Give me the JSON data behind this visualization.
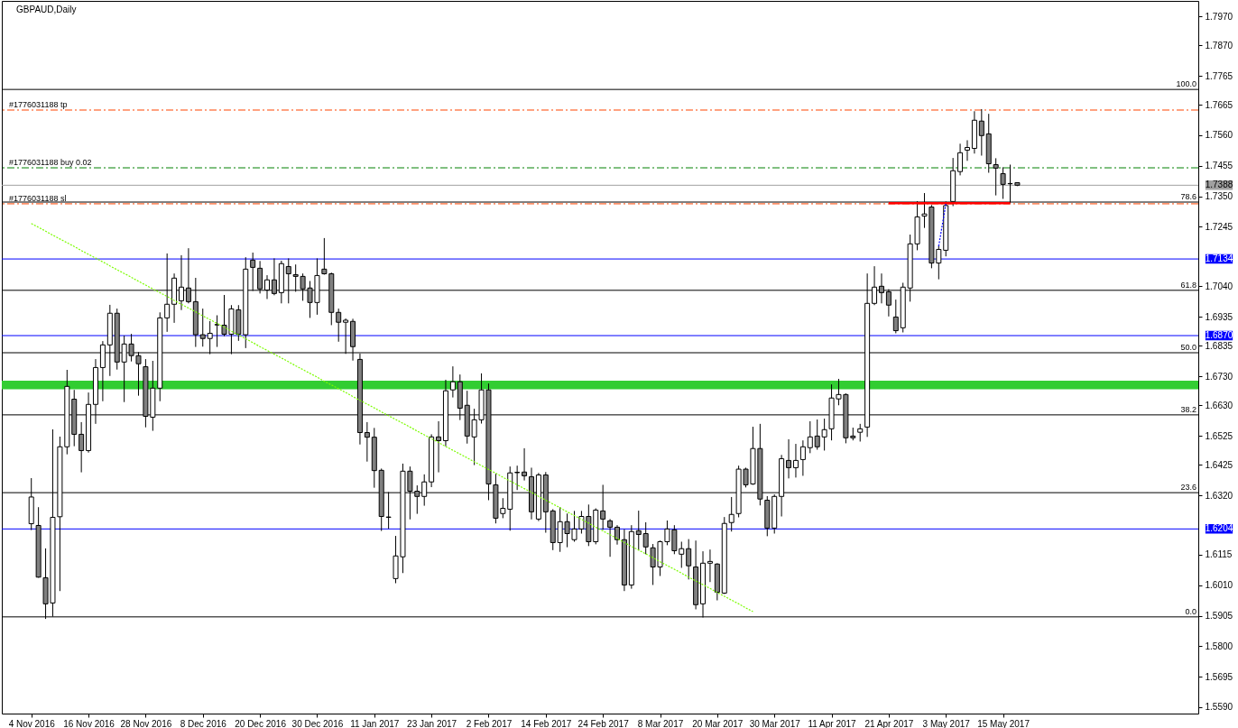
{
  "chart_data": {
    "type": "candlestick",
    "title": "GBPAUD,Daily",
    "categories": [
      "4 Nov 2016",
      null,
      null,
      null,
      null,
      null,
      null,
      null,
      "16 Nov 2016",
      null,
      null,
      null,
      null,
      null,
      null,
      null,
      "28 Nov 2016",
      null,
      null,
      null,
      null,
      null,
      null,
      null,
      "8 Dec 2016",
      null,
      null,
      null,
      null,
      null,
      null,
      null,
      "20 Dec 2016",
      null,
      null,
      null,
      null,
      null,
      null,
      null,
      "30 Dec 2016",
      null,
      null,
      null,
      null,
      null,
      null,
      null,
      "11 Jan 2017",
      null,
      null,
      null,
      null,
      null,
      null,
      null,
      "23 Jan 2017",
      null,
      null,
      null,
      null,
      null,
      null,
      null,
      "2 Feb 2017",
      null,
      null,
      null,
      null,
      null,
      null,
      null,
      "14 Feb 2017",
      null,
      null,
      null,
      null,
      null,
      null,
      null,
      "24 Feb 2017",
      null,
      null,
      null,
      null,
      null,
      null,
      null,
      "8 Mar 2017",
      null,
      null,
      null,
      null,
      null,
      null,
      null,
      "20 Mar 2017",
      null,
      null,
      null,
      null,
      null,
      null,
      null,
      "30 Mar 2017",
      null,
      null,
      null,
      null,
      null,
      null,
      null,
      "11 Apr 2017",
      null,
      null,
      null,
      null,
      null,
      null,
      null,
      "21 Apr 2017",
      null,
      null,
      null,
      null,
      null,
      null,
      null,
      "3 May 2017",
      null,
      null,
      null,
      null,
      null,
      null,
      null,
      "15 May 2017",
      null,
      null
    ],
    "ohlc": [
      [
        1.6222,
        1.6379,
        1.62,
        1.6314
      ],
      [
        1.6216,
        1.6279,
        1.6036,
        1.6038
      ],
      [
        1.6036,
        1.6137,
        1.5894,
        1.5946
      ],
      [
        1.5949,
        1.6547,
        1.5902,
        1.6244
      ],
      [
        1.6246,
        1.6522,
        1.599,
        1.6487
      ],
      [
        1.6487,
        1.6752,
        1.6461,
        1.6695
      ],
      [
        1.6651,
        1.6683,
        1.6489,
        1.653
      ],
      [
        1.653,
        1.6572,
        1.6399,
        1.6474
      ],
      [
        1.6474,
        1.6674,
        1.6467,
        1.6633
      ],
      [
        1.6633,
        1.6789,
        1.6566,
        1.676
      ],
      [
        1.676,
        1.6851,
        1.6644,
        1.6838
      ],
      [
        1.6838,
        1.6976,
        1.6731,
        1.6947
      ],
      [
        1.6947,
        1.6963,
        1.6753,
        1.6779
      ],
      [
        1.6779,
        1.687,
        1.6641,
        1.6841
      ],
      [
        1.6841,
        1.6876,
        1.6781,
        1.6801
      ],
      [
        1.6801,
        1.6813,
        1.6663,
        1.6773
      ],
      [
        1.6763,
        1.6789,
        1.6554,
        1.6592
      ],
      [
        1.6589,
        1.6783,
        1.6542,
        1.6689
      ],
      [
        1.6689,
        1.695,
        1.6644,
        1.6931
      ],
      [
        1.6931,
        1.7153,
        1.6883,
        1.6978
      ],
      [
        1.6978,
        1.7084,
        1.6914,
        1.7068
      ],
      [
        1.699,
        1.7147,
        1.6958,
        1.7037
      ],
      [
        1.7034,
        1.7171,
        1.6981,
        1.6987
      ],
      [
        1.6987,
        1.7069,
        1.6831,
        1.6873
      ],
      [
        1.6873,
        1.6963,
        1.6832,
        1.686
      ],
      [
        1.686,
        1.692,
        1.6806,
        1.6878
      ],
      [
        1.6908,
        1.694,
        1.6831,
        1.6907
      ],
      [
        1.6906,
        1.701,
        1.6868,
        1.6875
      ],
      [
        1.6875,
        1.6975,
        1.6806,
        1.6962
      ],
      [
        1.6959,
        1.6975,
        1.6852,
        1.6875
      ],
      [
        1.6873,
        1.714,
        1.6827,
        1.7099
      ],
      [
        1.713,
        1.7156,
        1.7024,
        1.7105
      ],
      [
        1.7102,
        1.7127,
        1.7015,
        1.7031
      ],
      [
        1.7027,
        1.7078,
        1.6996,
        1.7062
      ],
      [
        1.7062,
        1.7136,
        1.7009,
        1.7015
      ],
      [
        1.7018,
        1.7128,
        1.6981,
        1.7118
      ],
      [
        1.7108,
        1.7136,
        1.6981,
        1.7083
      ],
      [
        1.708,
        1.7115,
        1.7021,
        1.7074
      ],
      [
        1.7074,
        1.7084,
        1.699,
        1.7031
      ],
      [
        1.7034,
        1.7058,
        1.6931,
        1.6984
      ],
      [
        1.6984,
        1.7136,
        1.6942,
        1.7077
      ],
      [
        1.7099,
        1.7206,
        1.708,
        1.7083
      ],
      [
        1.7083,
        1.7087,
        1.6906,
        1.695
      ],
      [
        1.695,
        1.6963,
        1.6849,
        1.6916
      ],
      [
        1.6916,
        1.6929,
        1.6807,
        1.6923
      ],
      [
        1.6919,
        1.6928,
        1.6784,
        1.6832
      ],
      [
        1.6788,
        1.6808,
        1.6495,
        1.6536
      ],
      [
        1.6536,
        1.6572,
        1.6436,
        1.652
      ],
      [
        1.652,
        1.6552,
        1.6346,
        1.6405
      ],
      [
        1.6406,
        1.6412,
        1.6197,
        1.6247
      ],
      [
        1.6245,
        1.6331,
        1.6205,
        1.6244
      ],
      [
        1.6033,
        1.618,
        1.6017,
        1.6111
      ],
      [
        1.6108,
        1.6429,
        1.6052,
        1.6403
      ],
      [
        1.6403,
        1.6419,
        1.6237,
        1.6334
      ],
      [
        1.6334,
        1.6354,
        1.6256,
        1.6316
      ],
      [
        1.6316,
        1.6392,
        1.6284,
        1.6366
      ],
      [
        1.6366,
        1.653,
        1.6348,
        1.6521
      ],
      [
        1.6521,
        1.6575,
        1.6399,
        1.6508
      ],
      [
        1.6508,
        1.6718,
        1.6489,
        1.668
      ],
      [
        1.6683,
        1.6764,
        1.6657,
        1.6711
      ],
      [
        1.6711,
        1.6736,
        1.6579,
        1.662
      ],
      [
        1.663,
        1.668,
        1.6498,
        1.6524
      ],
      [
        1.6521,
        1.6618,
        1.6424,
        1.658
      ],
      [
        1.658,
        1.674,
        1.6567,
        1.6683
      ],
      [
        1.6683,
        1.6705,
        1.6303,
        1.6359
      ],
      [
        1.6356,
        1.6394,
        1.6223,
        1.6241
      ],
      [
        1.6257,
        1.631,
        1.6241,
        1.6275
      ],
      [
        1.6272,
        1.6419,
        1.6198,
        1.6397
      ],
      [
        1.6399,
        1.6422,
        1.6338,
        1.6398
      ],
      [
        1.64,
        1.6482,
        1.6371,
        1.6387
      ],
      [
        1.6384,
        1.6415,
        1.6237,
        1.6263
      ],
      [
        1.6238,
        1.6397,
        1.6231,
        1.639
      ],
      [
        1.639,
        1.64,
        1.6191,
        1.6263
      ],
      [
        1.6266,
        1.6272,
        1.6131,
        1.6157
      ],
      [
        1.6157,
        1.6279,
        1.6125,
        1.6229
      ],
      [
        1.6229,
        1.6257,
        1.6141,
        1.6188
      ],
      [
        1.6167,
        1.6266,
        1.616,
        1.6204
      ],
      [
        1.6204,
        1.6266,
        1.6188,
        1.6247
      ],
      [
        1.6247,
        1.6288,
        1.6145,
        1.616
      ],
      [
        1.616,
        1.6275,
        1.6151,
        1.6269
      ],
      [
        1.6266,
        1.6356,
        1.6201,
        1.6238
      ],
      [
        1.6232,
        1.6238,
        1.6108,
        1.621
      ],
      [
        1.621,
        1.6217,
        1.615,
        1.6167
      ],
      [
        1.6167,
        1.6203,
        1.599,
        1.6011
      ],
      [
        1.6011,
        1.6217,
        1.5998,
        1.6195
      ],
      [
        1.6198,
        1.6267,
        1.613,
        1.6185
      ],
      [
        1.6188,
        1.6227,
        1.6117,
        1.6142
      ],
      [
        1.6139,
        1.6152,
        1.6011,
        1.6073
      ],
      [
        1.6073,
        1.6164,
        1.6042,
        1.616
      ],
      [
        1.616,
        1.6233,
        1.6148,
        1.6204
      ],
      [
        1.6201,
        1.6217,
        1.6117,
        1.6129
      ],
      [
        1.6117,
        1.616,
        1.607,
        1.6136
      ],
      [
        1.6136,
        1.6169,
        1.603,
        1.6077
      ],
      [
        1.6073,
        1.6164,
        1.5927,
        1.5943
      ],
      [
        1.5946,
        1.6127,
        1.5899,
        1.6086
      ],
      [
        1.6086,
        1.6133,
        1.6021,
        1.6092
      ],
      [
        1.6083,
        1.6086,
        1.5958,
        1.5986
      ],
      [
        1.5983,
        1.6245,
        1.598,
        1.6223
      ],
      [
        1.6226,
        1.6314,
        1.6195,
        1.6254
      ],
      [
        1.6257,
        1.6422,
        1.6244,
        1.641
      ],
      [
        1.641,
        1.6415,
        1.6347,
        1.6356
      ],
      [
        1.6359,
        1.6556,
        1.6356,
        1.6481
      ],
      [
        1.6481,
        1.6566,
        1.6285,
        1.6307
      ],
      [
        1.6303,
        1.6317,
        1.6179,
        1.6207
      ],
      [
        1.6207,
        1.6323,
        1.6188,
        1.6316
      ],
      [
        1.6316,
        1.6459,
        1.6247,
        1.6446
      ],
      [
        1.644,
        1.6513,
        1.6378,
        1.6415
      ],
      [
        1.6415,
        1.6497,
        1.6381,
        1.644
      ],
      [
        1.6443,
        1.6509,
        1.6387,
        1.6487
      ],
      [
        1.6484,
        1.6575,
        1.6465,
        1.6521
      ],
      [
        1.6524,
        1.6581,
        1.6477,
        1.6487
      ],
      [
        1.6521,
        1.6584,
        1.6474,
        1.6546
      ],
      [
        1.6549,
        1.6702,
        1.6509,
        1.6655
      ],
      [
        1.6652,
        1.6721,
        1.663,
        1.6667
      ],
      [
        1.6667,
        1.6671,
        1.6499,
        1.6518
      ],
      [
        1.6524,
        1.6553,
        1.6509,
        1.6518
      ],
      [
        1.6537,
        1.6566,
        1.6505,
        1.6549
      ],
      [
        1.6555,
        1.7084,
        1.6521,
        1.6981
      ],
      [
        1.6981,
        1.7109,
        1.6975,
        1.7037
      ],
      [
        1.704,
        1.7084,
        1.6981,
        1.7018
      ],
      [
        1.7021,
        1.703,
        1.6936,
        1.6975
      ],
      [
        1.6934,
        1.6994,
        1.6878,
        1.6887
      ],
      [
        1.6897,
        1.7052,
        1.6881,
        1.7037
      ],
      [
        1.7034,
        1.7218,
        1.6987,
        1.7186
      ],
      [
        1.7186,
        1.7333,
        1.7164,
        1.7279
      ],
      [
        1.7282,
        1.7361,
        1.7241,
        1.7289
      ],
      [
        1.7313,
        1.732,
        1.7102,
        1.712
      ],
      [
        1.712,
        1.718,
        1.7064,
        1.7167
      ],
      [
        1.7164,
        1.7332,
        1.7143,
        1.7318
      ],
      [
        1.7332,
        1.7482,
        1.7316,
        1.7438
      ],
      [
        1.7435,
        1.7531,
        1.7422,
        1.75
      ],
      [
        1.7509,
        1.7543,
        1.7472,
        1.7518
      ],
      [
        1.7515,
        1.7643,
        1.7497,
        1.7612
      ],
      [
        1.7609,
        1.765,
        1.749,
        1.7559
      ],
      [
        1.7565,
        1.7634,
        1.7431,
        1.7462
      ],
      [
        1.7459,
        1.7481,
        1.7353,
        1.7447
      ],
      [
        1.7428,
        1.745,
        1.7341,
        1.7391
      ],
      [
        1.7394,
        1.7459,
        1.7326,
        1.7393
      ],
      [
        1.7397,
        1.7397,
        1.7385,
        1.7388
      ]
    ],
    "colors": [
      "#ffffff",
      "#808080",
      "#808080",
      "#ffffff",
      "#ffffff",
      "#ffffff",
      "#808080",
      "#808080",
      "#ffffff",
      "#ffffff",
      "#ffffff",
      "#ffffff",
      "#808080",
      "#ffffff",
      "#808080",
      "#808080",
      "#808080",
      "#ffffff",
      "#ffffff",
      "#ffffff",
      "#ffffff",
      "#ffffff",
      "#808080",
      "#808080",
      "#808080",
      "#ffffff",
      "#808080",
      "#808080",
      "#ffffff",
      "#808080",
      "#ffffff",
      "#808080",
      "#808080",
      "#ffffff",
      "#808080",
      "#ffffff",
      "#808080",
      "#808080",
      "#808080",
      "#808080",
      "#ffffff",
      "#808080",
      "#808080",
      "#808080",
      "#ffffff",
      "#808080",
      "#808080",
      "#808080",
      "#808080",
      "#808080",
      "#808080",
      "#ffffff",
      "#ffffff",
      "#808080",
      "#808080",
      "#ffffff",
      "#ffffff",
      "#808080",
      "#ffffff",
      "#ffffff",
      "#808080",
      "#808080",
      "#ffffff",
      "#ffffff",
      "#808080",
      "#808080",
      "#ffffff",
      "#ffffff",
      "#808080",
      "#808080",
      "#808080",
      "#ffffff",
      "#808080",
      "#808080",
      "#ffffff",
      "#808080",
      "#ffffff",
      "#ffffff",
      "#808080",
      "#ffffff",
      "#808080",
      "#808080",
      "#808080",
      "#808080",
      "#ffffff",
      "#808080",
      "#808080",
      "#808080",
      "#ffffff",
      "#ffffff",
      "#808080",
      "#ffffff",
      "#808080",
      "#808080",
      "#ffffff",
      "#ffffff",
      "#808080",
      "#ffffff",
      "#ffffff",
      "#ffffff",
      "#808080",
      "#ffffff",
      "#808080",
      "#808080",
      "#ffffff",
      "#ffffff",
      "#808080",
      "#ffffff",
      "#ffffff",
      "#ffffff",
      "#808080",
      "#ffffff",
      "#ffffff",
      "#ffffff",
      "#808080",
      "#808080",
      "#ffffff",
      "#ffffff",
      "#ffffff",
      "#808080",
      "#808080",
      "#808080",
      "#ffffff",
      "#ffffff",
      "#ffffff",
      "#ffffff",
      "#808080",
      "#ffffff",
      "#ffffff",
      "#ffffff",
      "#ffffff",
      "#ffffff",
      "#ffffff",
      "#808080",
      "#808080",
      "#808080",
      "#808080",
      "#808080",
      "#808080"
    ],
    "series": [
      {
        "type": "line",
        "color": "#7cfc00",
        "line_style": "dotted",
        "values": [
          1.7256,
          1.7243,
          1.723,
          1.7216,
          1.7203,
          1.719,
          1.7177,
          1.7163,
          1.715,
          1.7137,
          1.7124,
          1.711,
          1.7097,
          1.7084,
          1.7071,
          1.7057,
          1.7044,
          1.7031,
          1.7018,
          1.7005,
          1.6991,
          1.6978,
          1.6965,
          1.6952,
          1.6938,
          1.6925,
          1.6912,
          1.6899,
          1.6885,
          1.6872,
          1.6859,
          1.6846,
          1.6832,
          1.6819,
          1.6806,
          1.6793,
          1.678,
          1.6766,
          1.6753,
          1.674,
          1.6727,
          1.6713,
          1.67,
          1.6687,
          1.6674,
          1.666,
          1.6647,
          1.6634,
          1.6621,
          1.6607,
          1.6594,
          1.6581,
          1.6568,
          1.6555,
          1.6541,
          1.6528,
          1.6515,
          1.6502,
          1.6488,
          1.6475,
          1.6462,
          1.6449,
          1.6435,
          1.6422,
          1.6409,
          1.6396,
          1.6382,
          1.6369,
          1.6356,
          1.6343,
          1.633,
          1.6316,
          1.6303,
          1.629,
          1.6277,
          1.6263,
          1.625,
          1.6237,
          1.6224,
          1.621,
          1.6197,
          1.6184,
          1.6171,
          1.6157,
          1.6144,
          1.6131,
          1.6118,
          1.6105,
          1.6091,
          1.6078,
          1.6065,
          1.6052,
          1.6038,
          1.6025,
          1.6012,
          1.5999,
          1.5985,
          1.5972,
          1.5959,
          1.5946,
          1.5932,
          1.5919,
          null,
          null,
          null,
          null,
          null,
          null,
          null,
          null,
          null,
          null,
          null,
          null,
          null,
          null,
          null,
          null,
          null,
          null,
          null,
          null,
          null,
          null,
          null,
          null,
          null,
          null,
          null,
          null,
          null,
          null,
          null,
          null,
          null,
          null,
          null,
          null,
          null
        ]
      },
      {
        "type": "line",
        "color": "#ff0000",
        "line_style": "solid",
        "values": [
          null,
          null,
          null,
          null,
          null,
          null,
          null,
          null,
          null,
          null,
          null,
          null,
          null,
          null,
          null,
          null,
          null,
          null,
          null,
          null,
          null,
          null,
          null,
          null,
          null,
          null,
          null,
          null,
          null,
          null,
          null,
          null,
          null,
          null,
          null,
          null,
          null,
          null,
          null,
          null,
          null,
          null,
          null,
          null,
          null,
          null,
          null,
          null,
          null,
          null,
          null,
          null,
          null,
          null,
          null,
          null,
          null,
          null,
          null,
          null,
          null,
          null,
          null,
          null,
          null,
          null,
          null,
          null,
          null,
          null,
          null,
          null,
          null,
          null,
          null,
          null,
          null,
          null,
          null,
          null,
          null,
          null,
          null,
          null,
          null,
          null,
          null,
          null,
          null,
          null,
          null,
          null,
          null,
          null,
          null,
          null,
          null,
          null,
          null,
          null,
          null,
          null,
          null,
          null,
          null,
          null,
          null,
          null,
          null,
          null,
          null,
          null,
          null,
          null,
          null,
          null,
          null,
          null,
          null,
          null,
          1.7326,
          1.7326,
          1.7326,
          1.7326,
          1.7326,
          1.7326,
          1.7326,
          1.7326,
          1.7326,
          1.7326,
          1.7326,
          1.7326,
          1.7326,
          1.7326,
          1.7326,
          1.7326,
          1.7326,
          1.7326,
          null
        ]
      },
      {
        "type": "line",
        "color": "#0000ff",
        "line_style": "dotted",
        "values": [
          null,
          null,
          null,
          null,
          null,
          null,
          null,
          null,
          null,
          null,
          null,
          null,
          null,
          null,
          null,
          null,
          null,
          null,
          null,
          null,
          null,
          null,
          null,
          null,
          null,
          null,
          null,
          null,
          null,
          null,
          null,
          null,
          null,
          null,
          null,
          null,
          null,
          null,
          null,
          null,
          null,
          null,
          null,
          null,
          null,
          null,
          null,
          null,
          null,
          null,
          null,
          null,
          null,
          null,
          null,
          null,
          null,
          null,
          null,
          null,
          null,
          null,
          null,
          null,
          null,
          null,
          null,
          null,
          null,
          null,
          null,
          null,
          null,
          null,
          null,
          null,
          null,
          null,
          null,
          null,
          null,
          null,
          null,
          null,
          null,
          null,
          null,
          null,
          null,
          null,
          null,
          null,
          null,
          null,
          null,
          null,
          null,
          null,
          null,
          null,
          null,
          null,
          null,
          null,
          null,
          null,
          null,
          null,
          null,
          null,
          null,
          null,
          null,
          null,
          null,
          null,
          null,
          null,
          null,
          null,
          null,
          null,
          null,
          null,
          null,
          null,
          null,
          1.7178,
          1.7324,
          null,
          null,
          null,
          null,
          null,
          null,
          null,
          null,
          null,
          null
        ]
      }
    ],
    "annotations": [
      {
        "text": "100.0",
        "y": 1.7718
      },
      {
        "text": "78.6",
        "y": 1.733
      },
      {
        "text": "61.8",
        "y": 1.7026
      },
      {
        "text": "50.0",
        "y": 1.6811
      },
      {
        "text": "38.2",
        "y": 1.6597
      },
      {
        "text": "23.6",
        "y": 1.6329
      },
      {
        "text": "0.0",
        "y": 1.5901
      }
    ],
    "ylim": [
      1.5568,
      1.8023
    ],
    "yticks": [
      {
        "value": 1.559,
        "label": "1.5590"
      },
      {
        "value": 1.5695,
        "label": "1.5695"
      },
      {
        "value": 1.58,
        "label": "1.5800"
      },
      {
        "value": 1.5905,
        "label": "1.5905"
      },
      {
        "value": 1.601,
        "label": "1.6010"
      },
      {
        "value": 1.6115,
        "label": "1.6115"
      },
      {
        "value": 1.632,
        "label": "1.6320"
      },
      {
        "value": 1.6425,
        "label": "1.6425"
      },
      {
        "value": 1.6525,
        "label": "1.6525"
      },
      {
        "value": 1.663,
        "label": "1.6630"
      },
      {
        "value": 1.673,
        "label": "1.6730"
      },
      {
        "value": 1.6835,
        "label": "1.6835"
      },
      {
        "value": 1.6935,
        "label": "1.6935"
      },
      {
        "value": 1.704,
        "label": "1.7040"
      },
      {
        "value": 1.7245,
        "label": "1.7245"
      },
      {
        "value": 1.735,
        "label": "1.7350"
      },
      {
        "value": 1.7455,
        "label": "1.7455"
      },
      {
        "value": 1.756,
        "label": "1.7560"
      },
      {
        "value": 1.7665,
        "label": "1.7665"
      },
      {
        "value": 1.7765,
        "label": "1.7765"
      },
      {
        "value": 1.787,
        "label": "1.7870"
      },
      {
        "value": 1.797,
        "label": "1.7970"
      }
    ],
    "bands": [
      {
        "axis": "y",
        "from": 1.6685,
        "to": 1.6715,
        "color": "#32cd32"
      }
    ],
    "ref_lines": [
      {
        "axis": "y",
        "value": 1.7718,
        "color": "#000000",
        "line_style": "solid"
      },
      {
        "axis": "y",
        "value": 1.733,
        "color": "#000000",
        "line_style": "solid"
      },
      {
        "axis": "y",
        "value": 1.7026,
        "color": "#000000",
        "line_style": "solid"
      },
      {
        "axis": "y",
        "value": 1.6811,
        "color": "#000000",
        "line_style": "solid"
      },
      {
        "axis": "y",
        "value": 1.6597,
        "color": "#000000",
        "line_style": "solid"
      },
      {
        "axis": "y",
        "value": 1.6329,
        "color": "#000000",
        "line_style": "solid"
      },
      {
        "axis": "y",
        "value": 1.5901,
        "color": "#000000",
        "line_style": "solid"
      },
      {
        "axis": "y",
        "value": 1.7647,
        "label": "#1776031188 tp",
        "color": "#ff4500",
        "line_style": "dashed"
      },
      {
        "axis": "y",
        "value": 1.7448,
        "label": "#1776031188 buy 0.02",
        "color": "#008000",
        "line_style": "dashed"
      },
      {
        "axis": "y",
        "value": 1.7324,
        "label": "#1776031188 sl",
        "color": "#ff4500",
        "line_style": "dashed"
      },
      {
        "axis": "y",
        "value": 1.7388,
        "label": "1.7388",
        "color": "#a0a0a0",
        "line_style": "solid"
      },
      {
        "axis": "y",
        "value": 1.7134,
        "label": "1.7134",
        "color": "#0000ff",
        "line_style": "solid"
      },
      {
        "axis": "y",
        "value": 1.687,
        "label": "1.6870",
        "color": "#0000ff",
        "line_style": "solid"
      },
      {
        "axis": "y",
        "value": 1.6204,
        "label": "1.6204",
        "color": "#0000ff",
        "line_style": "solid"
      }
    ],
    "grid": false
  }
}
